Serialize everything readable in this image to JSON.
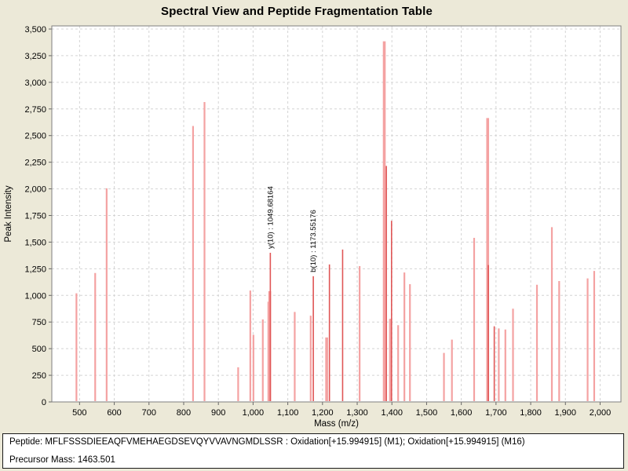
{
  "title": "Spectral View and Peptide Fragmentation Table",
  "chart_data": {
    "type": "bar",
    "subtype": "mass-spectrum-stick-plot",
    "title": "Spectral View and Peptide Fragmentation Table",
    "xlabel": "Mass (m/z)",
    "ylabel": "Peak Intensity",
    "xlim": [
      420,
      2060
    ],
    "ylim": [
      0,
      3500
    ],
    "grid": true,
    "x_ticks": [
      500,
      600,
      700,
      800,
      900,
      1000,
      1100,
      1200,
      1300,
      1400,
      1500,
      1600,
      1700,
      1800,
      1900,
      2000
    ],
    "x_tick_labels": [
      "500",
      "600",
      "700",
      "800",
      "900",
      "1,000",
      "1,100",
      "1,200",
      "1,300",
      "1,400",
      "1,500",
      "1,600",
      "1,700",
      "1,800",
      "1,900",
      "2,000"
    ],
    "y_ticks": [
      0,
      250,
      500,
      750,
      1000,
      1250,
      1500,
      1750,
      2000,
      2250,
      2500,
      2750,
      3000,
      3250,
      3500
    ],
    "y_tick_labels": [
      "0",
      "250",
      "500",
      "750",
      "1,000",
      "1,250",
      "1,500",
      "1,750",
      "2,000",
      "2,250",
      "2,500",
      "2,750",
      "3,000",
      "3,250",
      "3,500"
    ],
    "colors": {
      "peak": "#F4A2A2",
      "matched_peak": "#E05656",
      "grid": "#D4D4D4",
      "frame": "#7F7F7F",
      "plot_background": "#FFFFFF",
      "page_background": "#ECE9D8",
      "text": "#000000"
    },
    "peaks": [
      {
        "mz": 491,
        "intensity": 1020,
        "matched": false
      },
      {
        "mz": 545,
        "intensity": 1210,
        "matched": false
      },
      {
        "mz": 578,
        "intensity": 2005,
        "matched": false
      },
      {
        "mz": 827,
        "intensity": 2590,
        "matched": false
      },
      {
        "mz": 860,
        "intensity": 2815,
        "matched": false
      },
      {
        "mz": 957,
        "intensity": 325,
        "matched": false
      },
      {
        "mz": 992,
        "intensity": 1045,
        "matched": false
      },
      {
        "mz": 1001,
        "intensity": 630,
        "matched": false
      },
      {
        "mz": 1028,
        "intensity": 775,
        "matched": false
      },
      {
        "mz": 1044,
        "intensity": 940,
        "matched": false
      },
      {
        "mz": 1048,
        "intensity": 1040,
        "matched": false,
        "wide": true
      },
      {
        "mz": 1049.68164,
        "intensity": 1400,
        "matched": true,
        "label": "y(10) : 1049.68164"
      },
      {
        "mz": 1120,
        "intensity": 845,
        "matched": false
      },
      {
        "mz": 1166,
        "intensity": 810,
        "matched": false
      },
      {
        "mz": 1173.55176,
        "intensity": 1180,
        "matched": true,
        "label": "b(10) : 1173.55176"
      },
      {
        "mz": 1212,
        "intensity": 605,
        "matched": false,
        "wide": true
      },
      {
        "mz": 1220,
        "intensity": 1290,
        "matched": true
      },
      {
        "mz": 1258,
        "intensity": 1430,
        "matched": true
      },
      {
        "mz": 1307,
        "intensity": 1275,
        "matched": false
      },
      {
        "mz": 1378,
        "intensity": 3385,
        "matched": false,
        "wide": true
      },
      {
        "mz": 1384,
        "intensity": 2215,
        "matched": true
      },
      {
        "mz": 1396,
        "intensity": 780,
        "matched": false,
        "wide": true
      },
      {
        "mz": 1399,
        "intensity": 1700,
        "matched": true
      },
      {
        "mz": 1418,
        "intensity": 720,
        "matched": false
      },
      {
        "mz": 1436,
        "intensity": 1215,
        "matched": false
      },
      {
        "mz": 1452,
        "intensity": 1105,
        "matched": false
      },
      {
        "mz": 1550,
        "intensity": 460,
        "matched": false
      },
      {
        "mz": 1573,
        "intensity": 585,
        "matched": false
      },
      {
        "mz": 1637,
        "intensity": 1540,
        "matched": false
      },
      {
        "mz": 1676,
        "intensity": 2665,
        "matched": false,
        "wide": true
      },
      {
        "mz": 1678,
        "intensity": 1285,
        "matched": true
      },
      {
        "mz": 1695,
        "intensity": 710,
        "matched": true
      },
      {
        "mz": 1708,
        "intensity": 690,
        "matched": false
      },
      {
        "mz": 1727,
        "intensity": 680,
        "matched": false
      },
      {
        "mz": 1749,
        "intensity": 875,
        "matched": false
      },
      {
        "mz": 1818,
        "intensity": 1100,
        "matched": false
      },
      {
        "mz": 1861,
        "intensity": 1640,
        "matched": false
      },
      {
        "mz": 1882,
        "intensity": 1135,
        "matched": false
      },
      {
        "mz": 1964,
        "intensity": 1160,
        "matched": false
      },
      {
        "mz": 1983,
        "intensity": 1230,
        "matched": false
      }
    ],
    "annotations": [
      {
        "text": "y(10) : 1049.68164",
        "mz": 1049.68164,
        "intensity": 1400
      },
      {
        "text": "b(10) : 1173.55176",
        "mz": 1173.55176,
        "intensity": 1180
      }
    ],
    "legend": null
  },
  "info_panel": {
    "peptide_line": "Peptide: MFLFSSSDIEEAQFVMEHAEGDSEVQYVVAVNGMDLSSR : Oxidation[+15.994915] (M1); Oxidation[+15.994915] (M16)",
    "precursor_line": "Precursor Mass: 1463.501"
  }
}
